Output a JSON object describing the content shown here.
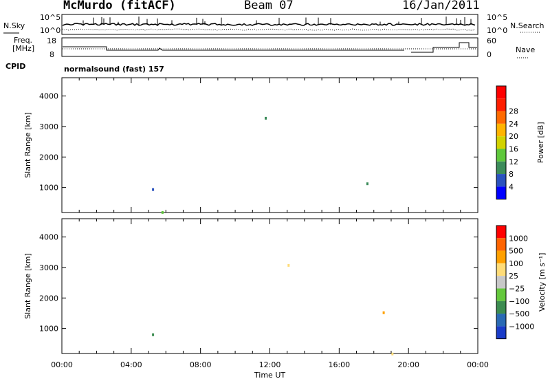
{
  "header": {
    "station": "McMurdo (fitACF)",
    "beam": "Beam 07",
    "date": "16/Jan/2011"
  },
  "top_panels": {
    "nsky_label": "N.Sky",
    "nsearch_label": "N.Search",
    "nsky_ticks": [
      "10^5",
      "10^0"
    ],
    "nsearch_ticks": [
      "10^5",
      "10^0"
    ],
    "freq_label_line1": "Freq.",
    "freq_label_line2": "[MHz]",
    "freq_ticks": [
      "18",
      "8"
    ],
    "nave_label": "Nave",
    "nave_ticks": [
      "60",
      "0"
    ],
    "cpid_label": "CPID",
    "cpid_value": "normalsound (fast) 157"
  },
  "chart_data": [
    {
      "type": "heatmap",
      "name": "power-panel",
      "ylabel": "Slant Range [km]",
      "yticks": [
        "1000",
        "2000",
        "3000",
        "4000"
      ],
      "ylim": [
        180,
        4600
      ],
      "xlim": [
        0,
        24
      ],
      "colorbar": {
        "label": "Power [dB]",
        "ticks": [
          "4",
          "8",
          "12",
          "16",
          "20",
          "24",
          "28"
        ],
        "colors": [
          "#0000ff",
          "#2a52be",
          "#3c8c5a",
          "#5fc83c",
          "#d2d200",
          "#ffb400",
          "#ff6a00",
          "#ff1e00",
          "#ff0000"
        ]
      }
    },
    {
      "type": "heatmap",
      "name": "velocity-panel",
      "ylabel": "Slant Range [km]",
      "yticks": [
        "1000",
        "2000",
        "3000",
        "4000"
      ],
      "ylim": [
        180,
        4600
      ],
      "xlim": [
        0,
        24
      ],
      "xticks": [
        "00:00",
        "04:00",
        "08:00",
        "12:00",
        "16:00",
        "20:00",
        "00:00"
      ],
      "xlabel": "Time UT",
      "colorbar": {
        "label": "Velocity [m s⁻¹]",
        "ticks": [
          "1000",
          "500",
          "100",
          "25",
          "−25",
          "−100",
          "−500",
          "−1000"
        ],
        "colors": [
          "#1a3cc8",
          "#2a6ab4",
          "#3c8c50",
          "#64c83c",
          "#c8c8c8",
          "#ffdc78",
          "#ffa000",
          "#ff6400",
          "#ff0000"
        ]
      }
    }
  ]
}
